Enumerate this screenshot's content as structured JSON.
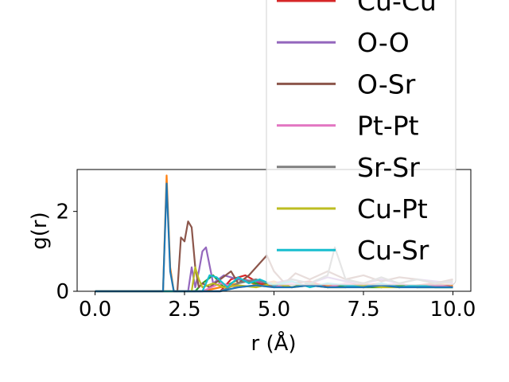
{
  "chart_data": {
    "type": "line",
    "xlabel": "r (Å)",
    "ylabel": "g(r)",
    "xlim": [
      -0.5,
      10.5
    ],
    "ylim": [
      0,
      3.05
    ],
    "xticks": [
      0.0,
      2.5,
      5.0,
      7.5,
      10.0
    ],
    "xtick_labels": [
      "0.0",
      "2.5",
      "5.0",
      "7.5",
      "10.0"
    ],
    "yticks": [
      0,
      2
    ],
    "ytick_labels": [
      "0",
      "2"
    ],
    "grid": false,
    "legend_placement": "upper-right (overflowing above plot)",
    "series": [
      {
        "name": "",
        "color": "#ff7f0e",
        "x": [
          0,
          1.9,
          2.0,
          2.1,
          2.2,
          2.5,
          3.0,
          3.5,
          4.0,
          4.2,
          4.5,
          5.0,
          5.5,
          6.0,
          6.5,
          7.0,
          7.5,
          8.0,
          8.5,
          9.0,
          9.5,
          10.0
        ],
        "y": [
          0,
          0,
          2.9,
          0.6,
          0,
          0,
          0,
          0.1,
          0.2,
          0.3,
          0.15,
          0.25,
          0.1,
          0.2,
          0.15,
          0.1,
          0.2,
          0.1,
          0.15,
          0.1,
          0.2,
          0.15
        ]
      },
      {
        "name": "",
        "color": "#2ca02c",
        "x": [
          0,
          2.8,
          3.0,
          3.3,
          3.6,
          4.0,
          4.5,
          5.0,
          5.5,
          6.0,
          6.5,
          7.0,
          7.5,
          8.0,
          8.5,
          9.0,
          9.5,
          10.0
        ],
        "y": [
          0,
          0,
          0.2,
          0.4,
          0.1,
          0.3,
          0.2,
          0.15,
          0.1,
          0.2,
          0.1,
          0.15,
          0.1,
          0.1,
          0.15,
          0.1,
          0.1,
          0.1
        ]
      },
      {
        "name": "Cu-Cu",
        "color": "#d62728",
        "x": [
          0,
          3.5,
          3.8,
          4.2,
          4.6,
          5.0,
          5.5,
          6.0,
          6.5,
          7.0,
          7.5,
          8.0,
          8.5,
          9.0,
          9.5,
          10.0
        ],
        "y": [
          0,
          0,
          0.3,
          0.4,
          0.2,
          0.1,
          0.2,
          0.25,
          0.1,
          0.2,
          0.15,
          0.2,
          0.1,
          0.15,
          0.2,
          0.1
        ]
      },
      {
        "name": "O-O",
        "color": "#9467bd",
        "x": [
          0,
          2.6,
          2.7,
          2.8,
          2.9,
          3.0,
          3.1,
          3.3,
          3.6,
          4.0,
          4.5,
          5.0,
          5.5,
          6.0,
          6.5,
          7.0,
          7.5,
          8.0,
          8.5,
          9.0,
          9.5,
          10.0
        ],
        "y": [
          0,
          0,
          0.6,
          0.1,
          0.5,
          1.0,
          1.1,
          0.2,
          0.4,
          0.3,
          0.25,
          0.2,
          0.3,
          0.2,
          0.35,
          0.25,
          0.2,
          0.3,
          0.2,
          0.3,
          0.25,
          0.2
        ]
      },
      {
        "name": "O-Sr",
        "color": "#8c564b",
        "x": [
          0,
          2.3,
          2.4,
          2.5,
          2.6,
          2.7,
          2.8,
          2.9,
          3.0,
          3.2,
          3.5,
          3.8,
          4.0,
          4.3,
          4.6,
          4.8,
          5.0,
          5.3,
          5.6,
          6.0,
          6.5,
          7.0,
          7.5,
          8.0,
          8.5,
          9.0,
          9.5,
          10.0
        ],
        "y": [
          0,
          0,
          1.35,
          1.25,
          1.75,
          1.6,
          0.6,
          0.1,
          0.2,
          0.1,
          0.3,
          0.5,
          0.2,
          0.4,
          0.7,
          0.9,
          0.5,
          0.2,
          0.45,
          0.3,
          0.5,
          0.3,
          0.4,
          0.25,
          0.35,
          0.3,
          0.2,
          0.3
        ]
      },
      {
        "name": "Pt-Pt",
        "color": "#e377c2",
        "x": [
          0,
          3.0,
          3.5,
          4.0,
          4.5,
          5.0,
          5.5,
          6.0,
          6.5,
          7.0,
          7.5,
          8.0,
          8.5,
          9.0,
          9.5,
          10.0
        ],
        "y": [
          0,
          0,
          0.2,
          0.1,
          0.15,
          0.1,
          0.2,
          0.15,
          0.1,
          0.2,
          0.1,
          0.15,
          0.2,
          0.1,
          0.15,
          0.1
        ]
      },
      {
        "name": "Sr-Sr",
        "color": "#7f7f7f",
        "x": [
          0,
          3.5,
          4.0,
          4.5,
          5.0,
          5.5,
          6.0,
          6.5,
          6.7,
          7.0,
          7.5,
          8.0,
          8.5,
          9.0,
          9.5,
          10.0
        ],
        "y": [
          0,
          0,
          0.2,
          0.3,
          0.15,
          0.3,
          0.2,
          0.4,
          1.1,
          0.3,
          0.2,
          0.35,
          0.2,
          0.3,
          0.2,
          0.25
        ]
      },
      {
        "name": "Cu-Pt",
        "color": "#bcbd22",
        "x": [
          0,
          2.7,
          2.8,
          2.9,
          3.0,
          3.3,
          3.6,
          4.0,
          4.5,
          5.0,
          5.5,
          6.0,
          6.5,
          7.0,
          7.5,
          8.0,
          8.5,
          9.0,
          9.5,
          10.0
        ],
        "y": [
          0,
          0,
          0.6,
          0.3,
          0.1,
          0.2,
          0.1,
          0.15,
          0.1,
          0.2,
          0.1,
          0.15,
          0.1,
          0.1,
          0.15,
          0.1,
          0.1,
          0.15,
          0.1,
          0.1
        ]
      },
      {
        "name": "Cu-Sr",
        "color": "#17becf",
        "x": [
          0,
          3.0,
          3.2,
          3.4,
          3.7,
          4.0,
          4.3,
          4.6,
          5.0,
          5.5,
          6.0,
          6.5,
          7.0,
          7.5,
          8.0,
          8.5,
          9.0,
          9.5,
          10.0
        ],
        "y": [
          0,
          0,
          0.4,
          0.35,
          0.1,
          0.35,
          0.2,
          0.3,
          0.15,
          0.25,
          0.1,
          0.2,
          0.15,
          0.1,
          0.2,
          0.1,
          0.15,
          0.1,
          0.1
        ]
      },
      {
        "name": "",
        "color": "#1f77b4",
        "x": [
          0,
          1.9,
          2.0,
          2.1,
          2.2,
          3.5,
          4.0,
          4.5,
          5.0,
          5.5,
          6.0,
          6.5,
          7.0,
          7.5,
          8.0,
          8.5,
          9.0,
          9.5,
          10.0
        ],
        "y": [
          0,
          0,
          2.7,
          0.5,
          0,
          0,
          0.1,
          0.15,
          0.1,
          0.1,
          0.15,
          0.1,
          0.1,
          0.1,
          0.15,
          0.1,
          0.1,
          0.1,
          0.1
        ]
      }
    ],
    "legend_entries": [
      "Cu-Cu",
      "O-O",
      "O-Sr",
      "Pt-Pt",
      "Sr-Sr",
      "Cu-Pt",
      "Cu-Sr"
    ]
  }
}
